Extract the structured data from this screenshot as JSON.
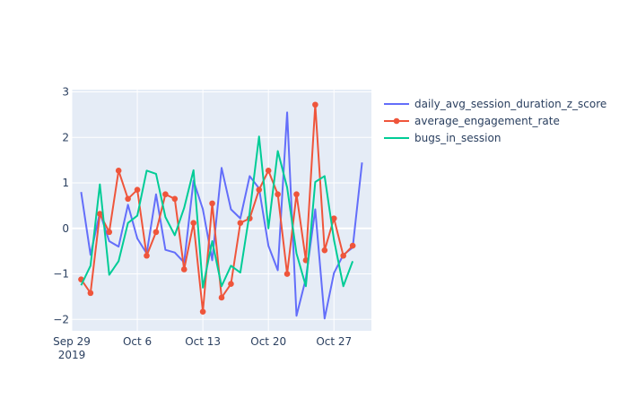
{
  "chart_data": {
    "type": "line",
    "title": "",
    "xlabel": "",
    "ylabel": "",
    "x": [
      "2019-09-30",
      "2019-10-01",
      "2019-10-02",
      "2019-10-03",
      "2019-10-04",
      "2019-10-05",
      "2019-10-06",
      "2019-10-07",
      "2019-10-08",
      "2019-10-09",
      "2019-10-10",
      "2019-10-11",
      "2019-10-12",
      "2019-10-13",
      "2019-10-14",
      "2019-10-15",
      "2019-10-16",
      "2019-10-17",
      "2019-10-18",
      "2019-10-19",
      "2019-10-20",
      "2019-10-21",
      "2019-10-22",
      "2019-10-23",
      "2019-10-24",
      "2019-10-25",
      "2019-10-26",
      "2019-10-27",
      "2019-10-28",
      "2019-10-29",
      "2019-10-30"
    ],
    "xlim": [
      "2019-09-29",
      "2019-10-31"
    ],
    "ylim": [
      -2.25,
      3.05
    ],
    "x_ticks": [
      {
        "date": "2019-09-29",
        "label": "Sep 29",
        "sublabel": "2019"
      },
      {
        "date": "2019-10-06",
        "label": "Oct 6"
      },
      {
        "date": "2019-10-13",
        "label": "Oct 13"
      },
      {
        "date": "2019-10-20",
        "label": "Oct 20"
      },
      {
        "date": "2019-10-27",
        "label": "Oct 27"
      }
    ],
    "y_ticks": [
      {
        "value": -2,
        "label": "−2"
      },
      {
        "value": -1,
        "label": "−1"
      },
      {
        "value": 0,
        "label": "0"
      },
      {
        "value": 1,
        "label": "1"
      },
      {
        "value": 2,
        "label": "2"
      },
      {
        "value": 3,
        "label": "3"
      }
    ],
    "grid": true,
    "legend_position": "top-right",
    "series": [
      {
        "name": "daily_avg_session_duration_z_score",
        "color": "#636efa",
        "mode": "lines",
        "values": [
          0.8,
          -0.58,
          0.35,
          -0.28,
          -0.4,
          0.52,
          -0.22,
          -0.55,
          0.75,
          -0.47,
          -0.53,
          -0.75,
          1.05,
          0.42,
          -0.7,
          1.33,
          0.42,
          0.22,
          1.15,
          0.88,
          -0.38,
          -0.92,
          2.55,
          -1.92,
          -1.1,
          0.42,
          -1.98,
          -0.98,
          -0.58,
          -0.42,
          1.45
        ]
      },
      {
        "name": "average_engagement_rate",
        "color": "#ef553b",
        "mode": "lines+markers",
        "values": [
          -1.12,
          -1.42,
          0.32,
          -0.08,
          1.27,
          0.65,
          0.85,
          -0.6,
          -0.08,
          0.75,
          0.65,
          -0.9,
          0.12,
          -1.83,
          0.55,
          -1.52,
          -1.22,
          0.12,
          0.22,
          0.85,
          1.27,
          0.75,
          -1.0,
          0.75,
          -0.7,
          2.72,
          -0.48,
          0.22,
          -0.6,
          -0.38,
          null
        ]
      },
      {
        "name": "bugs_in_session",
        "color": "#00cc96",
        "mode": "lines",
        "values": [
          -1.25,
          -0.82,
          0.97,
          -1.02,
          -0.72,
          0.12,
          0.28,
          1.27,
          1.2,
          0.25,
          -0.15,
          0.45,
          1.28,
          -1.3,
          -0.28,
          -1.27,
          -0.82,
          -0.97,
          0.35,
          2.02,
          0.0,
          1.7,
          0.9,
          -0.55,
          -1.27,
          1.02,
          1.15,
          -0.25,
          -1.27,
          -0.72,
          null
        ]
      }
    ]
  }
}
